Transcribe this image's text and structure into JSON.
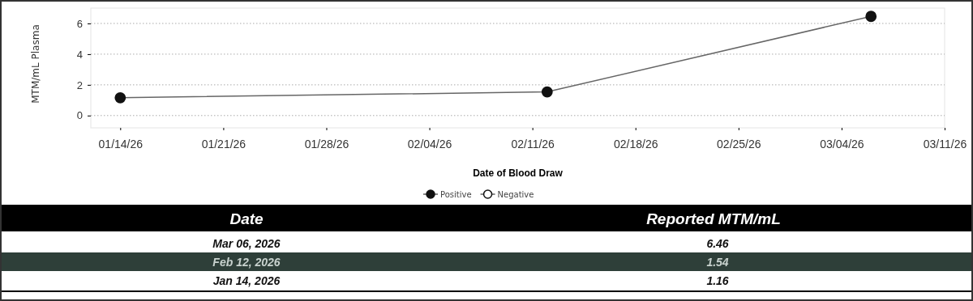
{
  "chart_data": [
    {
      "type": "line",
      "xlabel": "Date of Blood Draw",
      "ylabel": "MTM/mL Plasma",
      "x": [
        "2026-01-14",
        "2026-02-12",
        "2026-03-06"
      ],
      "series": [
        {
          "name": "Positive",
          "color": "#111111",
          "values": [
            1.16,
            1.54,
            6.46
          ]
        },
        {
          "name": "Negative",
          "color": "#111111",
          "values": [
            null,
            null,
            null
          ]
        }
      ],
      "xlim": [
        "2026-01-12",
        "2026-03-11"
      ],
      "xticks": [
        {
          "value": "2026-01-14",
          "label": "01/14/26"
        },
        {
          "value": "2026-01-21",
          "label": "01/21/26"
        },
        {
          "value": "2026-01-28",
          "label": "01/28/26"
        },
        {
          "value": "2026-02-04",
          "label": "02/04/26"
        },
        {
          "value": "2026-02-11",
          "label": "02/11/26"
        },
        {
          "value": "2026-02-18",
          "label": "02/18/26"
        },
        {
          "value": "2026-02-25",
          "label": "02/25/26"
        },
        {
          "value": "2026-03-04",
          "label": "03/04/26"
        },
        {
          "value": "2026-03-11",
          "label": "03/11/26"
        }
      ],
      "ylim": [
        -0.8,
        7
      ],
      "yticks": [
        0,
        2,
        4,
        6
      ],
      "grid": "y",
      "legend": "bottom",
      "marker": "circle",
      "line_style": "solid"
    },
    {
      "type": "other",
      "categories": [
        "Mar 06, 2026",
        "Feb 12, 2026",
        "Jan 14, 2026"
      ],
      "values": [
        6.46,
        1.54,
        1.16
      ],
      "data_labels": true,
      "annotations": [
        "Date",
        "Reported MTM/mL"
      ]
    }
  ]
}
